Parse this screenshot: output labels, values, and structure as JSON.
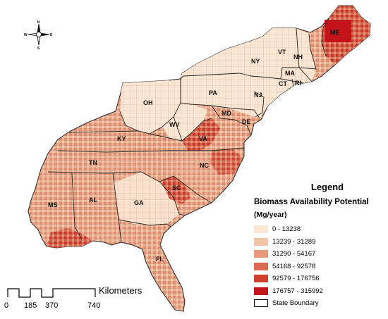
{
  "map": {
    "legend": {
      "title": "Legend",
      "subtitle": "Biomass Availability Potential",
      "unit": "(Mg/year)",
      "classes": [
        {
          "label": "0 - 13238",
          "color": "#fbe6d4"
        },
        {
          "label": "13239 - 31289",
          "color": "#f3c3a7"
        },
        {
          "label": "31290 - 54167",
          "color": "#e8997b"
        },
        {
          "label": "54168 - 92578",
          "color": "#dc6a53"
        },
        {
          "label": "92579 - 176756",
          "color": "#d03e30"
        },
        {
          "label": "176757 - 315992",
          "color": "#c3141b"
        }
      ],
      "boundary_label": "State Boundary"
    },
    "scale": {
      "ticks": [
        "0",
        "185",
        "370",
        "740"
      ],
      "unit": "Kilometers"
    },
    "north_arrow": {
      "n": "N",
      "s": "S",
      "e": "E",
      "w": "W",
      "icon": "compass-rose-icon"
    },
    "states": [
      {
        "abbr": "ME",
        "level": 5
      },
      {
        "abbr": "VT",
        "level": 1
      },
      {
        "abbr": "NH",
        "level": 2
      },
      {
        "abbr": "NY",
        "level": 1
      },
      {
        "abbr": "MA",
        "level": 0
      },
      {
        "abbr": "CT",
        "level": 0
      },
      {
        "abbr": "RI",
        "level": 0
      },
      {
        "abbr": "PA",
        "level": 1
      },
      {
        "abbr": "NJ",
        "level": 0
      },
      {
        "abbr": "OH",
        "level": 0
      },
      {
        "abbr": "MD",
        "level": 1
      },
      {
        "abbr": "DE",
        "level": 1
      },
      {
        "abbr": "WV",
        "level": 0
      },
      {
        "abbr": "KY",
        "level": 2
      },
      {
        "abbr": "VA",
        "level": 3
      },
      {
        "abbr": "NC",
        "level": 3
      },
      {
        "abbr": "TN",
        "level": 3
      },
      {
        "abbr": "SC",
        "level": 4
      },
      {
        "abbr": "MS",
        "level": 3
      },
      {
        "abbr": "AL",
        "level": 3
      },
      {
        "abbr": "GA",
        "level": 2
      },
      {
        "abbr": "FL",
        "level": 2
      }
    ]
  }
}
